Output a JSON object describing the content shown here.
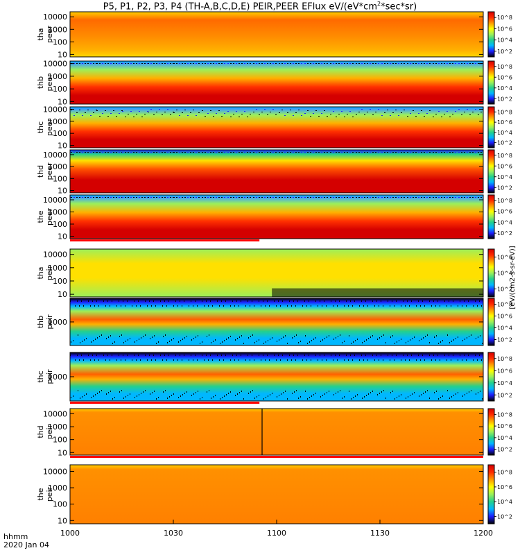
{
  "chart_data": {
    "type": "heatmap",
    "title": "P5, P1, P2, P3, P4 (TH-A,B,C,D,E) PEIR,PEER EFlux eV/(eV*cm",
    "title_sup": "2",
    "title_tail": "*sec*sr)",
    "x_label_line1": "hhmm",
    "x_label_line2": "2020 Jan 04",
    "x_ticks": [
      "1000",
      "1030",
      "1100",
      "1130",
      "1200"
    ],
    "x_range_hhmm": [
      "1000",
      "1200"
    ],
    "colorbar_label": "[eV/(cm2-s-sr-eV)]",
    "colorbar_colors": [
      "#000000",
      "#1d1dff",
      "#00b7ff",
      "#23d08d",
      "#9cf05a",
      "#ffff00",
      "#ff9900",
      "#ff2a00",
      "#d40000"
    ],
    "panels": [
      {
        "name": "tha peer",
        "label_top": "tha",
        "label_bottom": "peer",
        "yticks": [
          "10",
          "100",
          "1000",
          "10000"
        ],
        "ylog_range": [
          0.8,
          4.4
        ],
        "cbar_ticks": [
          "10^2",
          "10^4",
          "10^6",
          "10^8"
        ],
        "red_bar": false
      },
      {
        "name": "thb peer",
        "label_top": "thb",
        "label_bottom": "peer",
        "yticks": [
          "10",
          "100",
          "1000",
          "10000"
        ],
        "ylog_range": [
          0.8,
          4.2
        ],
        "cbar_ticks": [
          "10^2",
          "10^4",
          "10^6",
          "10^8"
        ],
        "red_bar": false
      },
      {
        "name": "thc peer",
        "label_top": "thc",
        "label_bottom": "peer",
        "yticks": [
          "10",
          "100",
          "1000",
          "10000"
        ],
        "ylog_range": [
          0.8,
          4.2
        ],
        "cbar_ticks": [
          "10^2",
          "10^4",
          "10^6",
          "10^8"
        ],
        "red_bar": false
      },
      {
        "name": "thd peer",
        "label_top": "thd",
        "label_bottom": "peer",
        "yticks": [
          "10",
          "100",
          "1000",
          "10000"
        ],
        "ylog_range": [
          0.8,
          4.4
        ],
        "cbar_ticks": [
          "10^2",
          "10^4",
          "10^6",
          "10^8"
        ],
        "red_bar": false
      },
      {
        "name": "the peer",
        "label_top": "the",
        "label_bottom": "peer",
        "yticks": [
          "10",
          "100",
          "1000",
          "10000"
        ],
        "ylog_range": [
          0.8,
          4.4
        ],
        "cbar_ticks": [
          "10^2",
          "10^4",
          "10^6",
          "10^8"
        ],
        "red_bar": true,
        "red_bar_end_hhmm": "1055"
      },
      {
        "name": "tha peir",
        "label_top": "tha",
        "label_bottom": "peir",
        "yticks": [
          "10",
          "100",
          "1000",
          "10000"
        ],
        "ylog_range": [
          0.8,
          4.4
        ],
        "cbar_ticks": [
          "10^2",
          "10^4",
          "10^6"
        ],
        "red_bar": false
      },
      {
        "name": "thb peir",
        "label_top": "thb",
        "label_bottom": "peir",
        "yticks": [
          "1000"
        ],
        "ylog_range": [
          1.5,
          4.5
        ],
        "cbar_ticks": [
          "10^2",
          "10^4",
          "10^6",
          "10^8"
        ],
        "red_bar": false
      },
      {
        "name": "thc peir",
        "label_top": "thc",
        "label_bottom": "peir",
        "yticks": [
          "1000"
        ],
        "ylog_range": [
          1.5,
          4.5
        ],
        "cbar_ticks": [
          "10^2",
          "10^4",
          "10^6",
          "10^8"
        ],
        "red_bar": true,
        "red_bar_end_hhmm": "1055"
      },
      {
        "name": "thd peir",
        "label_top": "thd",
        "label_bottom": "peir",
        "yticks": [
          "10",
          "100",
          "1000",
          "10000"
        ],
        "ylog_range": [
          0.8,
          4.4
        ],
        "cbar_ticks": [
          "10^2",
          "10^4",
          "10^6",
          "10^8"
        ],
        "red_bar": true,
        "red_bar_end_hhmm": "1200"
      },
      {
        "name": "the peir",
        "label_top": "the",
        "label_bottom": "peir",
        "yticks": [
          "10",
          "100",
          "1000",
          "10000"
        ],
        "ylog_range": [
          0.8,
          4.4
        ],
        "cbar_ticks": [
          "10^2",
          "10^4",
          "10^6",
          "10^8"
        ],
        "red_bar": false
      }
    ]
  }
}
